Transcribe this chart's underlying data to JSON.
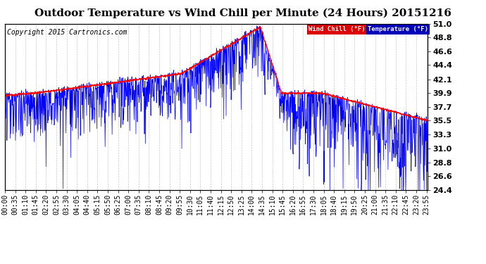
{
  "title": "Outdoor Temperature vs Wind Chill per Minute (24 Hours) 20151216",
  "copyright": "Copyright 2015 Cartronics.com",
  "legend_wind_chill": "Wind Chill (°F)",
  "legend_temperature": "Temperature (°F)",
  "ylim_min": 24.4,
  "ylim_max": 51.0,
  "yticks": [
    24.4,
    26.6,
    28.8,
    31.0,
    33.3,
    35.5,
    37.7,
    39.9,
    42.1,
    44.4,
    46.6,
    48.8,
    51.0
  ],
  "bg_color": "#ffffff",
  "grid_color": "#c8c8c8",
  "wind_chill_color": "#ff0000",
  "temp_color": "#0000ff",
  "title_fontsize": 11,
  "copyright_fontsize": 7,
  "tick_fontsize": 7,
  "num_minutes": 1440,
  "x_tick_step": 35
}
